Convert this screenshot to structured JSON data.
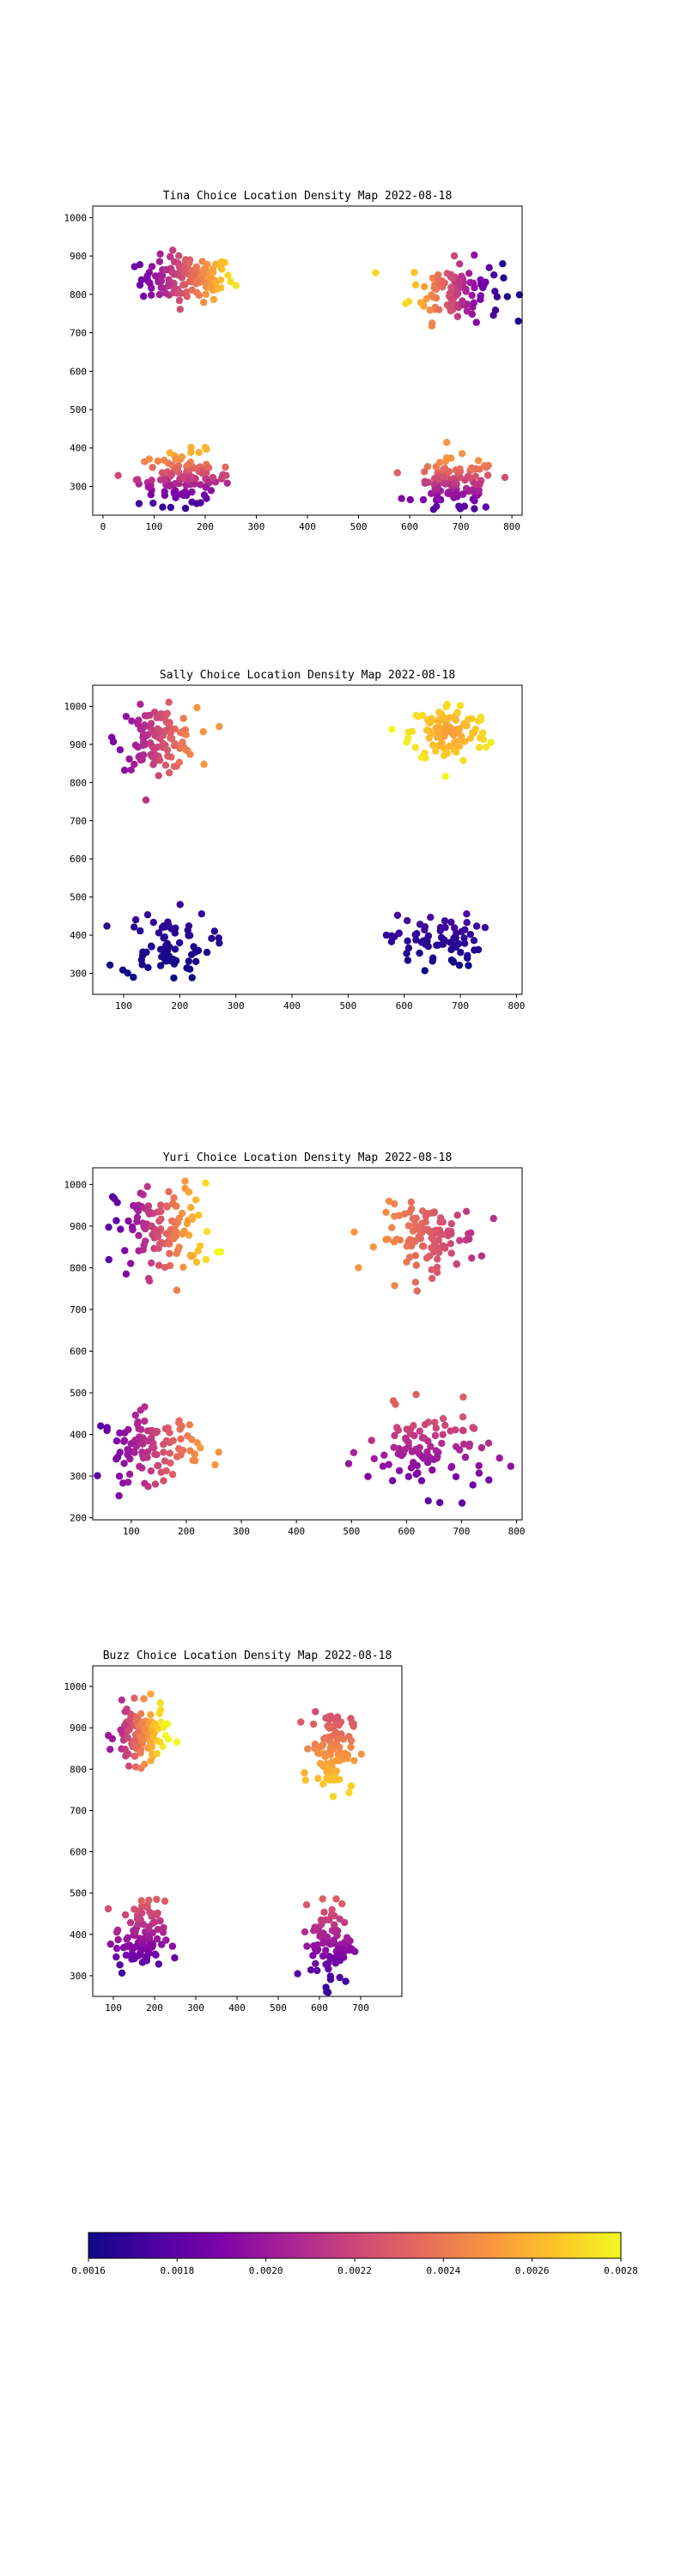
{
  "chart_data": [
    {
      "type": "scatter",
      "title": "Tina Choice Location Density Map 2022-08-18",
      "xlabel": "",
      "ylabel": "",
      "xlim": [
        -20,
        820
      ],
      "ylim": [
        225,
        1030
      ],
      "xticks": [
        0,
        100,
        200,
        300,
        400,
        500,
        600,
        700,
        800
      ],
      "yticks": [
        300,
        400,
        500,
        600,
        700,
        800,
        900,
        1000
      ],
      "clusters": [
        {
          "cx": 165,
          "cy": 840,
          "sx": 45,
          "sy": 30,
          "n": 130,
          "color_range": [
            0.00185,
            0.00275
          ],
          "color_by": "x"
        },
        {
          "cx": 690,
          "cy": 810,
          "sx": 45,
          "sy": 40,
          "n": 110,
          "color_range": [
            0.0027,
            0.00165
          ],
          "color_by": "x"
        },
        {
          "cx": 160,
          "cy": 320,
          "sx": 45,
          "sy": 35,
          "n": 120,
          "color_range": [
            0.0017,
            0.0026
          ],
          "color_by": "y"
        },
        {
          "cx": 690,
          "cy": 300,
          "sx": 40,
          "sy": 35,
          "n": 110,
          "color_range": [
            0.0017,
            0.0025
          ],
          "color_by": "y"
        }
      ],
      "grid": false,
      "legend": "none"
    },
    {
      "type": "scatter",
      "title": "Sally Choice Location Density Map 2022-08-18",
      "xlabel": "",
      "ylabel": "",
      "xlim": [
        45,
        810
      ],
      "ylim": [
        245,
        1055
      ],
      "xticks": [
        100,
        200,
        300,
        400,
        500,
        600,
        700,
        800
      ],
      "yticks": [
        300,
        400,
        500,
        600,
        700,
        800,
        900,
        1000
      ],
      "clusters": [
        {
          "cx": 160,
          "cy": 915,
          "sx": 35,
          "sy": 40,
          "n": 120,
          "color_range": [
            0.0019,
            0.0025
          ],
          "color_by": "x"
        },
        {
          "cx": 680,
          "cy": 930,
          "sx": 35,
          "sy": 40,
          "n": 110,
          "color_range": [
            0.0028,
            0.0025
          ],
          "color_by": "r"
        },
        {
          "cx": 175,
          "cy": 375,
          "sx": 40,
          "sy": 45,
          "n": 70,
          "color_range": [
            0.0016,
            0.0017
          ],
          "color_by": "y"
        },
        {
          "cx": 655,
          "cy": 385,
          "sx": 40,
          "sy": 35,
          "n": 70,
          "color_range": [
            0.0016,
            0.00175
          ],
          "color_by": "y"
        }
      ],
      "grid": false,
      "legend": "none"
    },
    {
      "type": "scatter",
      "title": "Yuri Choice Location Density Map 2022-08-18",
      "xlabel": "",
      "ylabel": "",
      "xlim": [
        30,
        810
      ],
      "ylim": [
        195,
        1040
      ],
      "xticks": [
        100,
        200,
        300,
        400,
        500,
        600,
        700,
        800
      ],
      "yticks": [
        200,
        300,
        400,
        500,
        600,
        700,
        800,
        900,
        1000
      ],
      "clusters": [
        {
          "cx": 160,
          "cy": 890,
          "sx": 45,
          "sy": 55,
          "n": 120,
          "color_range": [
            0.0018,
            0.0028
          ],
          "color_by": "x"
        },
        {
          "cx": 640,
          "cy": 870,
          "sx": 45,
          "sy": 40,
          "n": 110,
          "color_range": [
            0.0025,
            0.0021
          ],
          "color_by": "x"
        },
        {
          "cx": 135,
          "cy": 370,
          "sx": 45,
          "sy": 40,
          "n": 110,
          "color_range": [
            0.0018,
            0.0025
          ],
          "color_by": "x"
        },
        {
          "cx": 640,
          "cy": 360,
          "sx": 55,
          "sy": 50,
          "n": 100,
          "color_range": [
            0.0018,
            0.0023
          ],
          "color_by": "y"
        }
      ],
      "grid": false,
      "legend": "none"
    },
    {
      "type": "scatter",
      "title": "Buzz Choice Location Density Map 2022-08-18",
      "xlabel": "",
      "ylabel": "",
      "xlim": [
        50,
        800
      ],
      "ylim": [
        250,
        1050
      ],
      "xticks": [
        100,
        200,
        300,
        400,
        500,
        600,
        700
      ],
      "yticks": [
        300,
        400,
        500,
        600,
        700,
        800,
        900,
        1000
      ],
      "clusters": [
        {
          "cx": 165,
          "cy": 880,
          "sx": 30,
          "sy": 35,
          "n": 120,
          "color_range": [
            0.002,
            0.0028
          ],
          "color_by": "x"
        },
        {
          "cx": 630,
          "cy": 850,
          "sx": 25,
          "sy": 50,
          "n": 110,
          "color_range": [
            0.0022,
            0.0027
          ],
          "color_by": "y_inv"
        },
        {
          "cx": 165,
          "cy": 390,
          "sx": 30,
          "sy": 45,
          "n": 100,
          "color_range": [
            0.0017,
            0.0023
          ],
          "color_by": "y"
        },
        {
          "cx": 630,
          "cy": 380,
          "sx": 25,
          "sy": 50,
          "n": 90,
          "color_range": [
            0.0017,
            0.0023
          ],
          "color_by": "y"
        }
      ],
      "grid": false,
      "legend": "none"
    }
  ],
  "colorbar": {
    "colormap": "plasma",
    "min": 0.0016,
    "max": 0.0028,
    "ticks": [
      "0.0016",
      "0.0018",
      "0.0020",
      "0.0022",
      "0.0024",
      "0.0026",
      "0.0028"
    ]
  }
}
